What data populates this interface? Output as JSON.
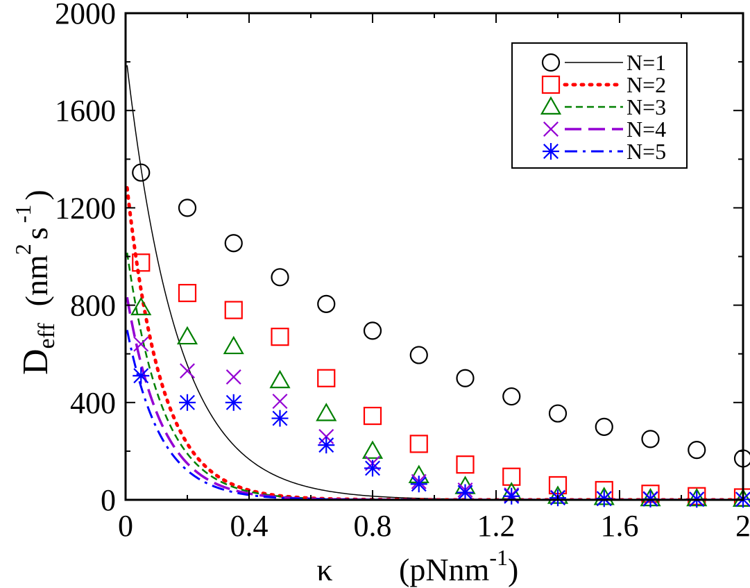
{
  "chart_data": {
    "type": "scatter",
    "title": "",
    "xlabel_symbol": "κ",
    "xlabel_unit": "(pNnm",
    "xlabel_exp": "-1",
    "xlabel_close": ")",
    "ylabel_main": "D",
    "ylabel_sub": "eff",
    "ylabel_unit_open": "(nm",
    "ylabel_exp1": "2",
    "ylabel_s": "s",
    "ylabel_exp2": "-1",
    "ylabel_close": ")",
    "xlim": [
      0,
      2
    ],
    "ylim": [
      0,
      2000
    ],
    "xticks": [
      0,
      0.4,
      0.8,
      1.2,
      1.6,
      2
    ],
    "xtick_labels": [
      "0",
      "0.4",
      "0.8",
      "1.2",
      "1.6",
      "2"
    ],
    "yticks": [
      0,
      400,
      800,
      1200,
      1600,
      2000
    ],
    "ytick_labels": [
      "0",
      "400",
      "800",
      "1200",
      "1600",
      "2000"
    ],
    "legend_position": "top-right",
    "series": [
      {
        "name": "N=1",
        "color": "#000000",
        "marker": "circle",
        "line": "solid",
        "x": [
          0.05,
          0.2,
          0.35,
          0.5,
          0.65,
          0.8,
          0.95,
          1.1,
          1.25,
          1.4,
          1.55,
          1.7,
          1.85,
          2.0
        ],
        "values": [
          1345,
          1200,
          1055,
          915,
          805,
          695,
          595,
          500,
          425,
          355,
          300,
          250,
          205,
          170
        ],
        "curve_D0": 1840,
        "curve_k": 6.0
      },
      {
        "name": "N=2",
        "color": "#ff0000",
        "marker": "square",
        "line": "dotted",
        "x": [
          0.05,
          0.2,
          0.35,
          0.5,
          0.65,
          0.8,
          0.95,
          1.1,
          1.25,
          1.4,
          1.55,
          1.7,
          1.85,
          2.0
        ],
        "values": [
          975,
          850,
          780,
          670,
          500,
          345,
          230,
          145,
          95,
          60,
          40,
          25,
          15,
          10
        ],
        "curve_D0": 1340,
        "curve_k": 8.8
      },
      {
        "name": "N=3",
        "color": "#008000",
        "marker": "triangle",
        "line": "dashed",
        "x": [
          0.05,
          0.2,
          0.35,
          0.5,
          0.65,
          0.8,
          0.95,
          1.1,
          1.25,
          1.4,
          1.55,
          1.7,
          1.85,
          2.0
        ],
        "values": [
          790,
          670,
          630,
          490,
          355,
          200,
          100,
          55,
          30,
          15,
          10,
          5,
          5,
          3
        ],
        "curve_D0": 1060,
        "curve_k": 8.6
      },
      {
        "name": "N=4",
        "color": "#9400d3",
        "marker": "cross",
        "line": "longdash",
        "x": [
          0.05,
          0.2,
          0.35,
          0.5,
          0.65,
          0.8,
          0.95,
          1.1,
          1.25,
          1.4,
          1.55,
          1.7,
          1.85,
          2.0
        ],
        "values": [
          640,
          530,
          505,
          405,
          260,
          150,
          75,
          40,
          20,
          10,
          5,
          5,
          3,
          2
        ],
        "curve_D0": 870,
        "curve_k": 8.8
      },
      {
        "name": "N=5",
        "color": "#0000ff",
        "marker": "asterisk",
        "line": "dashdot",
        "x": [
          0.05,
          0.2,
          0.35,
          0.5,
          0.65,
          0.8,
          0.95,
          1.1,
          1.25,
          1.4,
          1.55,
          1.7,
          1.85,
          2.0
        ],
        "values": [
          510,
          400,
          400,
          335,
          225,
          130,
          65,
          30,
          15,
          8,
          5,
          3,
          2,
          2
        ],
        "curve_D0": 730,
        "curve_k": 9.0
      }
    ]
  }
}
